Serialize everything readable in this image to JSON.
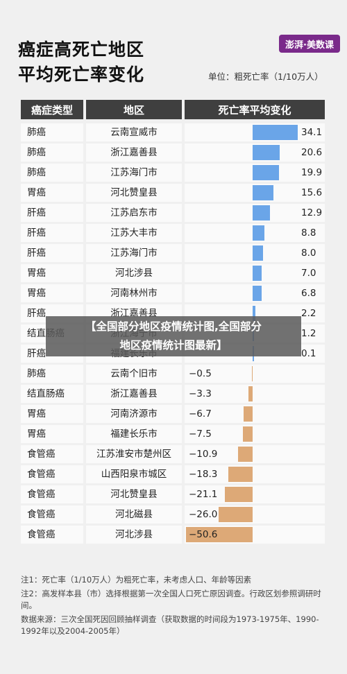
{
  "title_line1": "癌症高死亡地区",
  "title_line2": "平均死亡率变化",
  "brand": "澎湃·美数课",
  "unit": "单位：粗死亡率（1/10万人）",
  "headers": [
    "癌症类型",
    "地区",
    "死亡率平均变化"
  ],
  "overlay_line1": "【全国部分地区疫情统计图,全国部分",
  "overlay_line2": "地区疫情统计图最新】",
  "notes": [
    "注1：死亡率（1/10万人）为粗死亡率，未考虑人口、年龄等因素",
    "注2：高发样本县（市）选择根据第一次全国人口死亡原因调查。行政区划参照调研时间。",
    "数据来源：三次全国死因回顾抽样调查（获取数据的时间段为1973-1975年、1990-1992年以及2004-2005年）"
  ],
  "colors": {
    "positive": "#6aa5e8",
    "negative": "#dda977"
  },
  "chart_data": {
    "type": "bar",
    "title": "癌症高死亡地区 平均死亡率变化",
    "ylabel": "死亡率平均变化",
    "unit": "粗死亡率（1/10万人）",
    "rows": [
      {
        "cancer": "肺癌",
        "region": "云南宣威市",
        "value": 34.1,
        "label": "34.1"
      },
      {
        "cancer": "肺癌",
        "region": "浙江嘉善县",
        "value": 20.6,
        "label": "20.6"
      },
      {
        "cancer": "肺癌",
        "region": "江苏海门市",
        "value": 19.9,
        "label": "19.9"
      },
      {
        "cancer": "胃癌",
        "region": "河北赞皇县",
        "value": 15.6,
        "label": "15.6"
      },
      {
        "cancer": "肝癌",
        "region": "江苏启东市",
        "value": 12.9,
        "label": "12.9"
      },
      {
        "cancer": "肝癌",
        "region": "江苏大丰市",
        "value": 8.8,
        "label": "8.8"
      },
      {
        "cancer": "肝癌",
        "region": "江苏海门市",
        "value": 8.0,
        "label": "8.0"
      },
      {
        "cancer": "胃癌",
        "region": "河北涉县",
        "value": 7.0,
        "label": "7.0"
      },
      {
        "cancer": "胃癌",
        "region": "河南林州市",
        "value": 6.8,
        "label": "6.8"
      },
      {
        "cancer": "肝癌",
        "region": "浙江嘉善县",
        "value": 2.2,
        "label": "2.2"
      },
      {
        "cancer": "结直肠癌",
        "region": "浙江海宁市",
        "value": 1.2,
        "label": "1.2"
      },
      {
        "cancer": "肝癌",
        "region": "福建长乐市",
        "value": 0.1,
        "label": "0.1"
      },
      {
        "cancer": "肺癌",
        "region": "云南个旧市",
        "value": -0.5,
        "label": "−0.5"
      },
      {
        "cancer": "结直肠癌",
        "region": "浙江嘉善县",
        "value": -3.3,
        "label": "−3.3"
      },
      {
        "cancer": "胃癌",
        "region": "河南济源市",
        "value": -6.7,
        "label": "−6.7"
      },
      {
        "cancer": "胃癌",
        "region": "福建长乐市",
        "value": -7.5,
        "label": "−7.5"
      },
      {
        "cancer": "食管癌",
        "region": "江苏淮安市楚州区",
        "value": -10.9,
        "label": "−10.9"
      },
      {
        "cancer": "食管癌",
        "region": "山西阳泉市城区",
        "value": -18.3,
        "label": "−18.3"
      },
      {
        "cancer": "食管癌",
        "region": "河北赞皇县",
        "value": -21.1,
        "label": "−21.1"
      },
      {
        "cancer": "食管癌",
        "region": "河北磁县",
        "value": -26.0,
        "label": "−26.0"
      },
      {
        "cancer": "食管癌",
        "region": "河北涉县",
        "value": -50.6,
        "label": "−50.6"
      }
    ]
  }
}
